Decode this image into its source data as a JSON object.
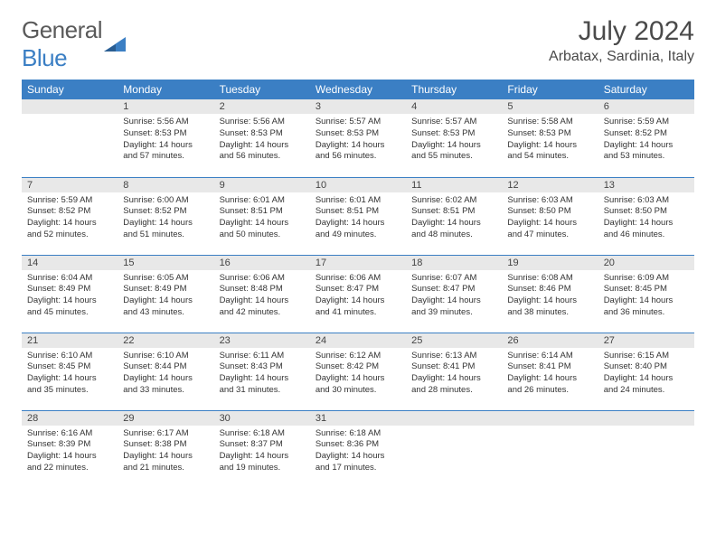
{
  "logo": {
    "textGray": "General",
    "textBlue": "Blue"
  },
  "title": "July 2024",
  "location": "Arbatax, Sardinia, Italy",
  "colors": {
    "headerBlue": "#3b7fc4",
    "dayHeaderGray": "#e8e8e8",
    "textGray": "#5a5a5a"
  },
  "weekdays": [
    "Sunday",
    "Monday",
    "Tuesday",
    "Wednesday",
    "Thursday",
    "Friday",
    "Saturday"
  ],
  "weeks": [
    [
      null,
      {
        "n": "1",
        "sr": "5:56 AM",
        "ss": "8:53 PM",
        "dl": "14 hours and 57 minutes."
      },
      {
        "n": "2",
        "sr": "5:56 AM",
        "ss": "8:53 PM",
        "dl": "14 hours and 56 minutes."
      },
      {
        "n": "3",
        "sr": "5:57 AM",
        "ss": "8:53 PM",
        "dl": "14 hours and 56 minutes."
      },
      {
        "n": "4",
        "sr": "5:57 AM",
        "ss": "8:53 PM",
        "dl": "14 hours and 55 minutes."
      },
      {
        "n": "5",
        "sr": "5:58 AM",
        "ss": "8:53 PM",
        "dl": "14 hours and 54 minutes."
      },
      {
        "n": "6",
        "sr": "5:59 AM",
        "ss": "8:52 PM",
        "dl": "14 hours and 53 minutes."
      }
    ],
    [
      {
        "n": "7",
        "sr": "5:59 AM",
        "ss": "8:52 PM",
        "dl": "14 hours and 52 minutes."
      },
      {
        "n": "8",
        "sr": "6:00 AM",
        "ss": "8:52 PM",
        "dl": "14 hours and 51 minutes."
      },
      {
        "n": "9",
        "sr": "6:01 AM",
        "ss": "8:51 PM",
        "dl": "14 hours and 50 minutes."
      },
      {
        "n": "10",
        "sr": "6:01 AM",
        "ss": "8:51 PM",
        "dl": "14 hours and 49 minutes."
      },
      {
        "n": "11",
        "sr": "6:02 AM",
        "ss": "8:51 PM",
        "dl": "14 hours and 48 minutes."
      },
      {
        "n": "12",
        "sr": "6:03 AM",
        "ss": "8:50 PM",
        "dl": "14 hours and 47 minutes."
      },
      {
        "n": "13",
        "sr": "6:03 AM",
        "ss": "8:50 PM",
        "dl": "14 hours and 46 minutes."
      }
    ],
    [
      {
        "n": "14",
        "sr": "6:04 AM",
        "ss": "8:49 PM",
        "dl": "14 hours and 45 minutes."
      },
      {
        "n": "15",
        "sr": "6:05 AM",
        "ss": "8:49 PM",
        "dl": "14 hours and 43 minutes."
      },
      {
        "n": "16",
        "sr": "6:06 AM",
        "ss": "8:48 PM",
        "dl": "14 hours and 42 minutes."
      },
      {
        "n": "17",
        "sr": "6:06 AM",
        "ss": "8:47 PM",
        "dl": "14 hours and 41 minutes."
      },
      {
        "n": "18",
        "sr": "6:07 AM",
        "ss": "8:47 PM",
        "dl": "14 hours and 39 minutes."
      },
      {
        "n": "19",
        "sr": "6:08 AM",
        "ss": "8:46 PM",
        "dl": "14 hours and 38 minutes."
      },
      {
        "n": "20",
        "sr": "6:09 AM",
        "ss": "8:45 PM",
        "dl": "14 hours and 36 minutes."
      }
    ],
    [
      {
        "n": "21",
        "sr": "6:10 AM",
        "ss": "8:45 PM",
        "dl": "14 hours and 35 minutes."
      },
      {
        "n": "22",
        "sr": "6:10 AM",
        "ss": "8:44 PM",
        "dl": "14 hours and 33 minutes."
      },
      {
        "n": "23",
        "sr": "6:11 AM",
        "ss": "8:43 PM",
        "dl": "14 hours and 31 minutes."
      },
      {
        "n": "24",
        "sr": "6:12 AM",
        "ss": "8:42 PM",
        "dl": "14 hours and 30 minutes."
      },
      {
        "n": "25",
        "sr": "6:13 AM",
        "ss": "8:41 PM",
        "dl": "14 hours and 28 minutes."
      },
      {
        "n": "26",
        "sr": "6:14 AM",
        "ss": "8:41 PM",
        "dl": "14 hours and 26 minutes."
      },
      {
        "n": "27",
        "sr": "6:15 AM",
        "ss": "8:40 PM",
        "dl": "14 hours and 24 minutes."
      }
    ],
    [
      {
        "n": "28",
        "sr": "6:16 AM",
        "ss": "8:39 PM",
        "dl": "14 hours and 22 minutes."
      },
      {
        "n": "29",
        "sr": "6:17 AM",
        "ss": "8:38 PM",
        "dl": "14 hours and 21 minutes."
      },
      {
        "n": "30",
        "sr": "6:18 AM",
        "ss": "8:37 PM",
        "dl": "14 hours and 19 minutes."
      },
      {
        "n": "31",
        "sr": "6:18 AM",
        "ss": "8:36 PM",
        "dl": "14 hours and 17 minutes."
      },
      null,
      null,
      null
    ]
  ],
  "labels": {
    "sunrise": "Sunrise:",
    "sunset": "Sunset:",
    "daylight": "Daylight:"
  }
}
